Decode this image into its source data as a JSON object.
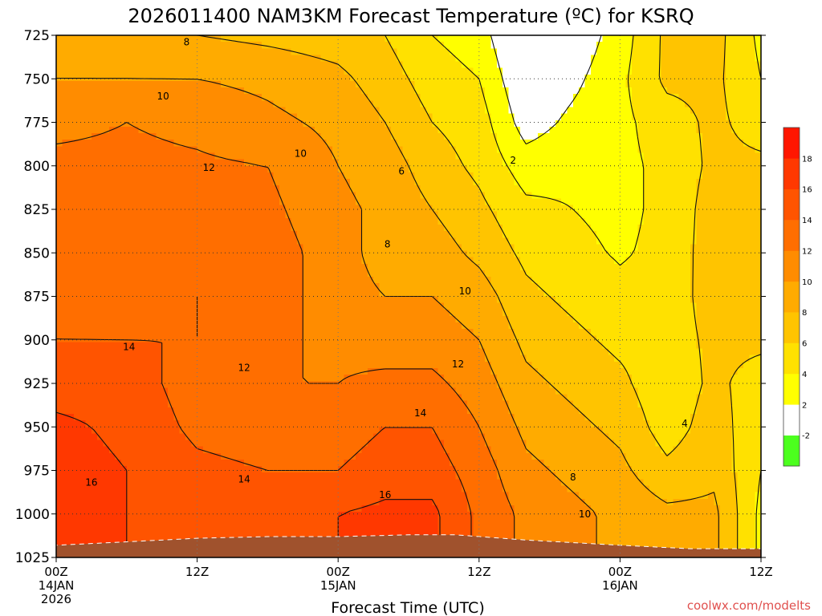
{
  "chart_data": {
    "type": "heatmap",
    "title": "2026011400 NAM3KM Forecast Temperature (ºC) for KSRQ",
    "xlabel": "Forecast Time (UTC)",
    "ylabel": "",
    "credit": "coolwx.com/modelts",
    "units": "ºC",
    "x_range_hours": [
      0,
      60
    ],
    "y_range_hpa": [
      725,
      1025
    ],
    "x_ticks": [
      {
        "hour": 0,
        "line1": "00Z",
        "line2": "14JAN",
        "line3": "2026"
      },
      {
        "hour": 12,
        "line1": "12Z",
        "line2": "",
        "line3": ""
      },
      {
        "hour": 24,
        "line1": "00Z",
        "line2": "15JAN",
        "line3": ""
      },
      {
        "hour": 36,
        "line1": "12Z",
        "line2": "",
        "line3": ""
      },
      {
        "hour": 48,
        "line1": "00Z",
        "line2": "16JAN",
        "line3": ""
      },
      {
        "hour": 60,
        "line1": "12Z",
        "line2": "",
        "line3": ""
      }
    ],
    "y_ticks": [
      725,
      750,
      775,
      800,
      825,
      850,
      875,
      900,
      925,
      950,
      975,
      1000,
      1025
    ],
    "contour_levels": [
      -2,
      2,
      4,
      6,
      8,
      10,
      12,
      14,
      16,
      18
    ],
    "colorbar": [
      {
        "lo": -4,
        "hi": -2,
        "color": "#4cff1e",
        "label": "-2"
      },
      {
        "lo": -2,
        "hi": 2,
        "color": "#ffffff",
        "label": "2"
      },
      {
        "lo": 2,
        "hi": 4,
        "color": "#ffff00",
        "label": "4"
      },
      {
        "lo": 4,
        "hi": 6,
        "color": "#ffe100",
        "label": "6"
      },
      {
        "lo": 6,
        "hi": 8,
        "color": "#ffc400",
        "label": "8"
      },
      {
        "lo": 8,
        "hi": 10,
        "color": "#ffab00",
        "label": "10"
      },
      {
        "lo": 10,
        "hi": 12,
        "color": "#ff8c00",
        "label": "12"
      },
      {
        "lo": 12,
        "hi": 14,
        "color": "#ff6e00",
        "label": "14"
      },
      {
        "lo": 14,
        "hi": 16,
        "color": "#ff5400",
        "label": "16"
      },
      {
        "lo": 16,
        "hi": 18,
        "color": "#ff3800",
        "label": "18"
      },
      {
        "lo": 18,
        "hi": 20,
        "color": "#ff1600",
        "label": ""
      }
    ],
    "contour_labels": [
      {
        "text": "8",
        "hour": 11.1,
        "p": 729
      },
      {
        "text": "10",
        "hour": 9.1,
        "p": 760
      },
      {
        "text": "10",
        "hour": 20.8,
        "p": 793
      },
      {
        "text": "12",
        "hour": 13.0,
        "p": 801
      },
      {
        "text": "6",
        "hour": 29.4,
        "p": 803
      },
      {
        "text": "2",
        "hour": 38.9,
        "p": 797
      },
      {
        "text": "8",
        "hour": 28.2,
        "p": 845
      },
      {
        "text": "10",
        "hour": 34.8,
        "p": 872
      },
      {
        "text": "14",
        "hour": 6.2,
        "p": 904
      },
      {
        "text": "12",
        "hour": 16.0,
        "p": 916
      },
      {
        "text": "12",
        "hour": 34.2,
        "p": 914
      },
      {
        "text": "14",
        "hour": 31.0,
        "p": 942
      },
      {
        "text": "4",
        "hour": 53.5,
        "p": 948
      },
      {
        "text": "16",
        "hour": 3.0,
        "p": 982
      },
      {
        "text": "14",
        "hour": 16.0,
        "p": 980
      },
      {
        "text": "8",
        "hour": 44.0,
        "p": 979
      },
      {
        "text": "16",
        "hour": 28.0,
        "p": 989
      },
      {
        "text": "10",
        "hour": 45.0,
        "p": 1000
      }
    ],
    "surface_pressure_hpa": [
      {
        "hour": 0,
        "p": 1018
      },
      {
        "hour": 6,
        "p": 1016
      },
      {
        "hour": 12,
        "p": 1014
      },
      {
        "hour": 18,
        "p": 1013
      },
      {
        "hour": 24,
        "p": 1013
      },
      {
        "hour": 30,
        "p": 1012
      },
      {
        "hour": 34,
        "p": 1012
      },
      {
        "hour": 40,
        "p": 1015
      },
      {
        "hour": 48,
        "p": 1018
      },
      {
        "hour": 54,
        "p": 1020
      },
      {
        "hour": 60,
        "p": 1020
      }
    ],
    "field_profiles": [
      {
        "hour": 0,
        "t": [
          9.0,
          10.0,
          11.5,
          12.5,
          13.0,
          13.0,
          13.5,
          14.0,
          15.0,
          16.5,
          17.0,
          16.5,
          16.5
        ]
      },
      {
        "hour": 6,
        "t": [
          8.5,
          10.0,
          12.0,
          12.5,
          12.5,
          12.5,
          13.0,
          14.0,
          15.0,
          15.5,
          16.0,
          16.0,
          16.0
        ]
      },
      {
        "hour": 12,
        "t": [
          8.0,
          10.0,
          11.5,
          12.3,
          13.0,
          13.5,
          14.0,
          14.0,
          13.0,
          13.5,
          14.5,
          15.5,
          15.5
        ]
      },
      {
        "hour": 18,
        "t": [
          7.5,
          9.5,
          10.5,
          12.0,
          12.5,
          13.0,
          13.0,
          12.5,
          12.0,
          13.0,
          14.0,
          15.5,
          15.5
        ]
      },
      {
        "hour": 24,
        "t": [
          7.0,
          8.5,
          9.5,
          10.0,
          10.5,
          11.0,
          11.0,
          11.5,
          12.0,
          13.0,
          14.0,
          16.0,
          16.0
        ]
      },
      {
        "hour": 28,
        "t": [
          6.0,
          7.0,
          8.0,
          9.0,
          9.5,
          9.0,
          10.0,
          11.0,
          12.5,
          14.0,
          15.0,
          16.5,
          16.5
        ]
      },
      {
        "hour": 32,
        "t": [
          4.0,
          5.0,
          6.0,
          7.0,
          8.0,
          9.0,
          10.0,
          11.0,
          12.5,
          14.0,
          15.0,
          16.5,
          16.5
        ]
      },
      {
        "hour": 36,
        "t": [
          3.0,
          4.0,
          5.0,
          5.5,
          6.5,
          7.5,
          9.0,
          10.0,
          11.0,
          12.0,
          13.0,
          13.5,
          13.5
        ]
      },
      {
        "hour": 40,
        "t": [
          -1.0,
          0.0,
          1.0,
          3.0,
          4.5,
          5.5,
          6.5,
          7.5,
          8.5,
          9.5,
          10.5,
          11.5,
          11.5
        ]
      },
      {
        "hour": 44,
        "t": [
          0.5,
          1.5,
          2.5,
          3.5,
          4.0,
          4.5,
          5.5,
          6.5,
          7.5,
          8.5,
          9.5,
          10.5,
          10.5
        ]
      },
      {
        "hour": 48,
        "t": [
          3.0,
          3.5,
          3.5,
          3.5,
          3.5,
          3.8,
          4.5,
          5.5,
          6.5,
          7.5,
          8.5,
          9.5,
          9.5
        ]
      },
      {
        "hour": 52,
        "t": [
          6.5,
          6.5,
          5.0,
          4.5,
          4.5,
          4.5,
          4.8,
          5.0,
          4.5,
          5.0,
          6.5,
          8.5,
          8.5
        ]
      },
      {
        "hour": 56,
        "t": [
          6.8,
          6.5,
          6.5,
          6.5,
          7.0,
          7.2,
          7.0,
          6.5,
          6.5,
          7.0,
          7.5,
          8.5,
          8.5
        ]
      },
      {
        "hour": 60,
        "t": [
          3.5,
          4.0,
          5.0,
          6.5,
          7.0,
          7.5,
          7.0,
          6.5,
          5.0,
          4.5,
          4.0,
          3.5,
          3.5
        ]
      }
    ]
  }
}
